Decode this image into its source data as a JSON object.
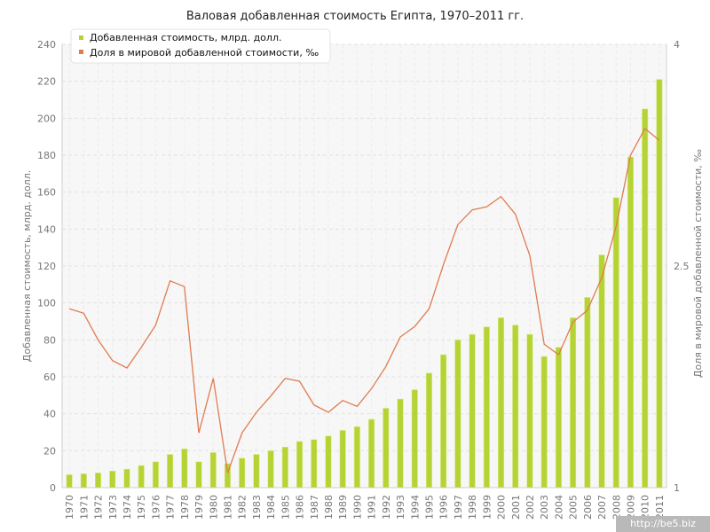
{
  "chart_data": {
    "type": "bar+line",
    "title": "Валовая добавленная стоимость Египта, 1970–2011 гг.",
    "ylabel_left": "Добавленная стоимость, млрд. долл.",
    "ylabel_right": "Доля в мировой добавленной стоимости, ‰",
    "ylim_left": [
      0,
      240
    ],
    "ylim_right": [
      1,
      4
    ],
    "yticks_left": [
      0,
      20,
      40,
      60,
      80,
      100,
      120,
      140,
      160,
      180,
      200,
      220,
      240
    ],
    "yticks_right": [
      1,
      2.5,
      4
    ],
    "yticks_right_labels": [
      "1",
      "2.5",
      "4"
    ],
    "categories": [
      "1970",
      "1971",
      "1972",
      "1973",
      "1974",
      "1975",
      "1976",
      "1977",
      "1978",
      "1979",
      "1980",
      "1981",
      "1982",
      "1983",
      "1984",
      "1985",
      "1986",
      "1987",
      "1988",
      "1989",
      "1990",
      "1991",
      "1992",
      "1993",
      "1994",
      "1995",
      "1996",
      "1997",
      "1998",
      "1999",
      "2000",
      "2001",
      "2002",
      "2003",
      "2004",
      "2005",
      "2006",
      "2007",
      "2008",
      "2009",
      "2010",
      "2011"
    ],
    "series": [
      {
        "name": "Добавленная стоимость, млрд. долл.",
        "type": "bar",
        "axis": "left",
        "color": "#b5d334",
        "values": [
          7,
          7.5,
          8,
          9,
          10,
          12,
          14,
          18,
          21,
          14,
          19,
          13,
          16,
          18,
          20,
          22,
          25,
          26,
          28,
          31,
          33,
          37,
          43,
          48,
          53,
          62,
          72,
          80,
          83,
          87,
          92,
          88,
          83,
          71,
          76,
          92,
          103,
          126,
          157,
          179,
          205,
          221
        ]
      },
      {
        "name": "Доля в мировой добавленной стоимости, ‰",
        "type": "line",
        "axis": "right",
        "color": "#e07b4f",
        "values": [
          2.21,
          2.18,
          2.0,
          1.86,
          1.81,
          1.95,
          2.1,
          2.4,
          2.36,
          1.37,
          1.74,
          1.1,
          1.37,
          1.51,
          1.62,
          1.74,
          1.72,
          1.56,
          1.51,
          1.59,
          1.55,
          1.67,
          1.82,
          2.02,
          2.09,
          2.21,
          2.51,
          2.78,
          2.88,
          2.9,
          2.97,
          2.85,
          2.57,
          1.97,
          1.9,
          2.12,
          2.2,
          2.42,
          2.77,
          3.25,
          3.43,
          3.35
        ]
      }
    ],
    "legend_position": "top-left",
    "grid": true
  },
  "watermark": "http://be5.biz"
}
